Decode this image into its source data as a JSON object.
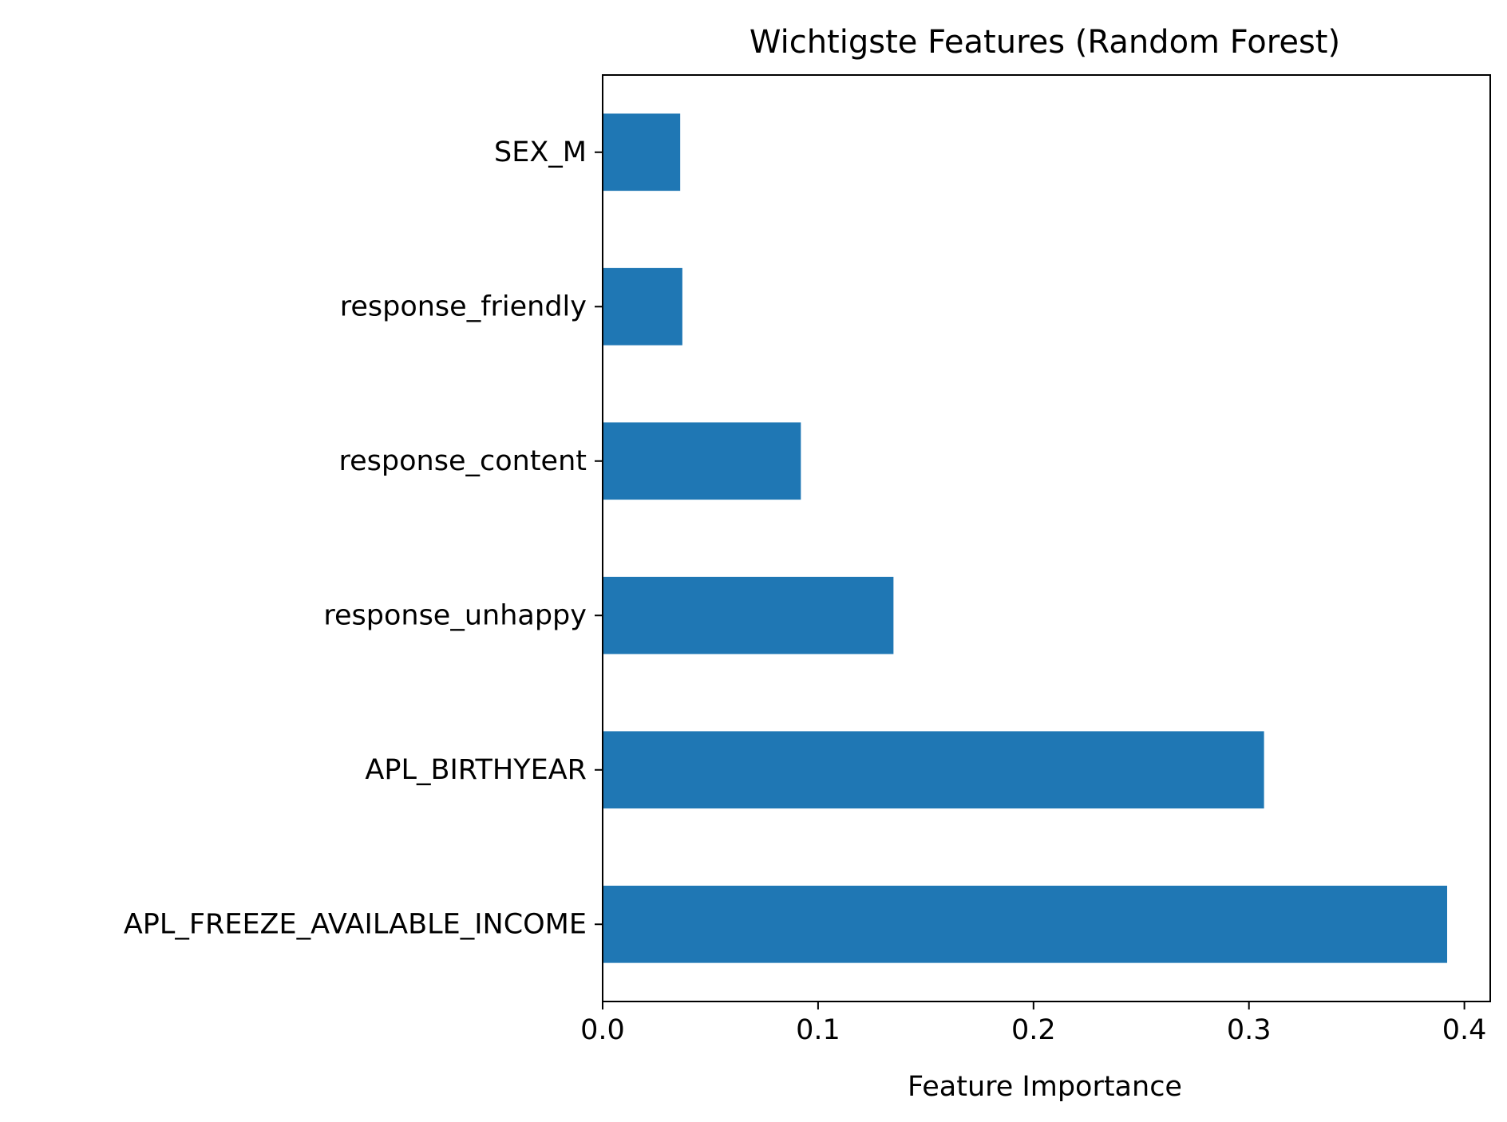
{
  "chart_data": {
    "type": "bar",
    "orientation": "horizontal",
    "title": "Wichtigste Features (Random Forest)",
    "xlabel": "Feature Importance",
    "ylabel": "",
    "categories": [
      "APL_FREEZE_AVAILABLE_INCOME",
      "APL_BIRTHYEAR",
      "response_unhappy",
      "response_content",
      "response_friendly",
      "SEX_M"
    ],
    "values": [
      0.392,
      0.307,
      0.135,
      0.092,
      0.037,
      0.036
    ],
    "xlim": [
      0,
      0.412
    ],
    "xticks": [
      0.0,
      0.1,
      0.2,
      0.3,
      0.4
    ],
    "xtick_labels": [
      "0.0",
      "0.1",
      "0.2",
      "0.3",
      "0.4"
    ],
    "grid": false,
    "legend": "none",
    "bar_color": "#1f77b4"
  }
}
